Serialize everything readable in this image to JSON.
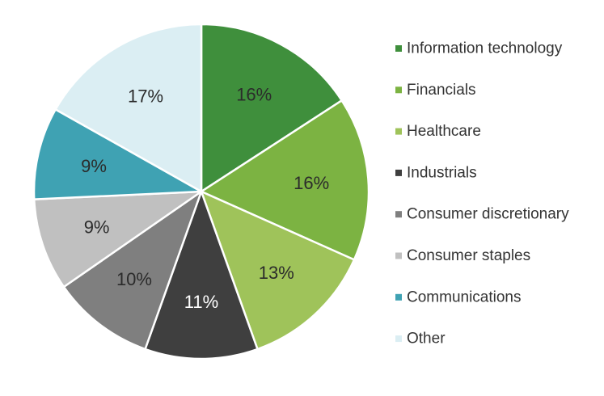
{
  "chart_data": {
    "type": "pie",
    "title": "",
    "legend_position": "right",
    "slices": [
      {
        "label": "Information technology",
        "value": 16,
        "display": "16%",
        "color": "#3f8f3c",
        "label_color": "#2b2b2b"
      },
      {
        "label": "Financials",
        "value": 16,
        "display": "16%",
        "color": "#7cb342",
        "label_color": "#2b2b2b"
      },
      {
        "label": "Healthcare",
        "value": 13,
        "display": "13%",
        "color": "#9fc35a",
        "label_color": "#2b2b2b"
      },
      {
        "label": "Industrials",
        "value": 11,
        "display": "11%",
        "color": "#3f3f3f",
        "label_color": "#ffffff"
      },
      {
        "label": "Consumer discretionary",
        "value": 10,
        "display": "10%",
        "color": "#7f7f7f",
        "label_color": "#2b2b2b"
      },
      {
        "label": "Consumer staples",
        "value": 9,
        "display": "9%",
        "color": "#c0c0c0",
        "label_color": "#2b2b2b"
      },
      {
        "label": "Communications",
        "value": 9,
        "display": "9%",
        "color": "#3fa2b3",
        "label_color": "#2b2b2b"
      },
      {
        "label": "Other",
        "value": 17,
        "display": "17%",
        "color": "#dbeef3",
        "label_color": "#2b2b2b"
      }
    ]
  }
}
